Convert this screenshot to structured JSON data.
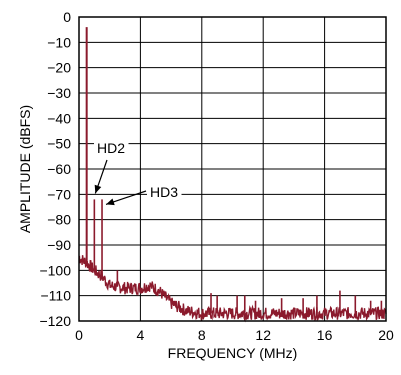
{
  "chart_data": {
    "type": "line",
    "title": "",
    "xlabel": "FREQUENCY (MHz)",
    "ylabel": "AMPLITUDE (dBFS)",
    "xlim": [
      0,
      20
    ],
    "ylim": [
      -120,
      0
    ],
    "x_ticks": [
      0,
      4,
      8,
      12,
      16,
      20
    ],
    "y_ticks": [
      0,
      -10,
      -20,
      -30,
      -40,
      -50,
      -60,
      -70,
      -80,
      -90,
      -100,
      -110,
      -120
    ],
    "grid": true,
    "series_color": "#8b1a2c",
    "fundamental": {
      "x": 0.5,
      "y": -4
    },
    "spurs": [
      {
        "x": 1.0,
        "y": -72
      },
      {
        "x": 1.5,
        "y": -72
      },
      {
        "x": 2.5,
        "y": -100
      },
      {
        "x": 8.6,
        "y": -109
      },
      {
        "x": 9.0,
        "y": -110
      },
      {
        "x": 10.3,
        "y": -110
      },
      {
        "x": 10.8,
        "y": -110
      },
      {
        "x": 11.5,
        "y": -112
      },
      {
        "x": 13.2,
        "y": -111
      },
      {
        "x": 14.6,
        "y": -111
      },
      {
        "x": 15.5,
        "y": -110
      },
      {
        "x": 17.0,
        "y": -108
      },
      {
        "x": 18.0,
        "y": -110
      },
      {
        "x": 19.0,
        "y": -112
      },
      {
        "x": 19.7,
        "y": -112
      }
    ],
    "noise_floor": [
      {
        "x": 0.0,
        "y": -95
      },
      {
        "x": 0.5,
        "y": -97
      },
      {
        "x": 1.0,
        "y": -100
      },
      {
        "x": 1.6,
        "y": -103
      },
      {
        "x": 2.0,
        "y": -106
      },
      {
        "x": 3.0,
        "y": -107
      },
      {
        "x": 4.0,
        "y": -107
      },
      {
        "x": 4.6,
        "y": -106
      },
      {
        "x": 5.2,
        "y": -108
      },
      {
        "x": 6.0,
        "y": -113
      },
      {
        "x": 7.0,
        "y": -116
      },
      {
        "x": 8.0,
        "y": -117
      },
      {
        "x": 10.0,
        "y": -117
      },
      {
        "x": 12.0,
        "y": -117
      },
      {
        "x": 14.0,
        "y": -117
      },
      {
        "x": 16.0,
        "y": -117
      },
      {
        "x": 18.0,
        "y": -117
      },
      {
        "x": 20.0,
        "y": -117
      }
    ],
    "annotations": [
      {
        "text": "HD2",
        "target": {
          "x": 1.0,
          "y": -72
        }
      },
      {
        "text": "HD3",
        "target": {
          "x": 1.5,
          "y": -72
        }
      }
    ]
  }
}
